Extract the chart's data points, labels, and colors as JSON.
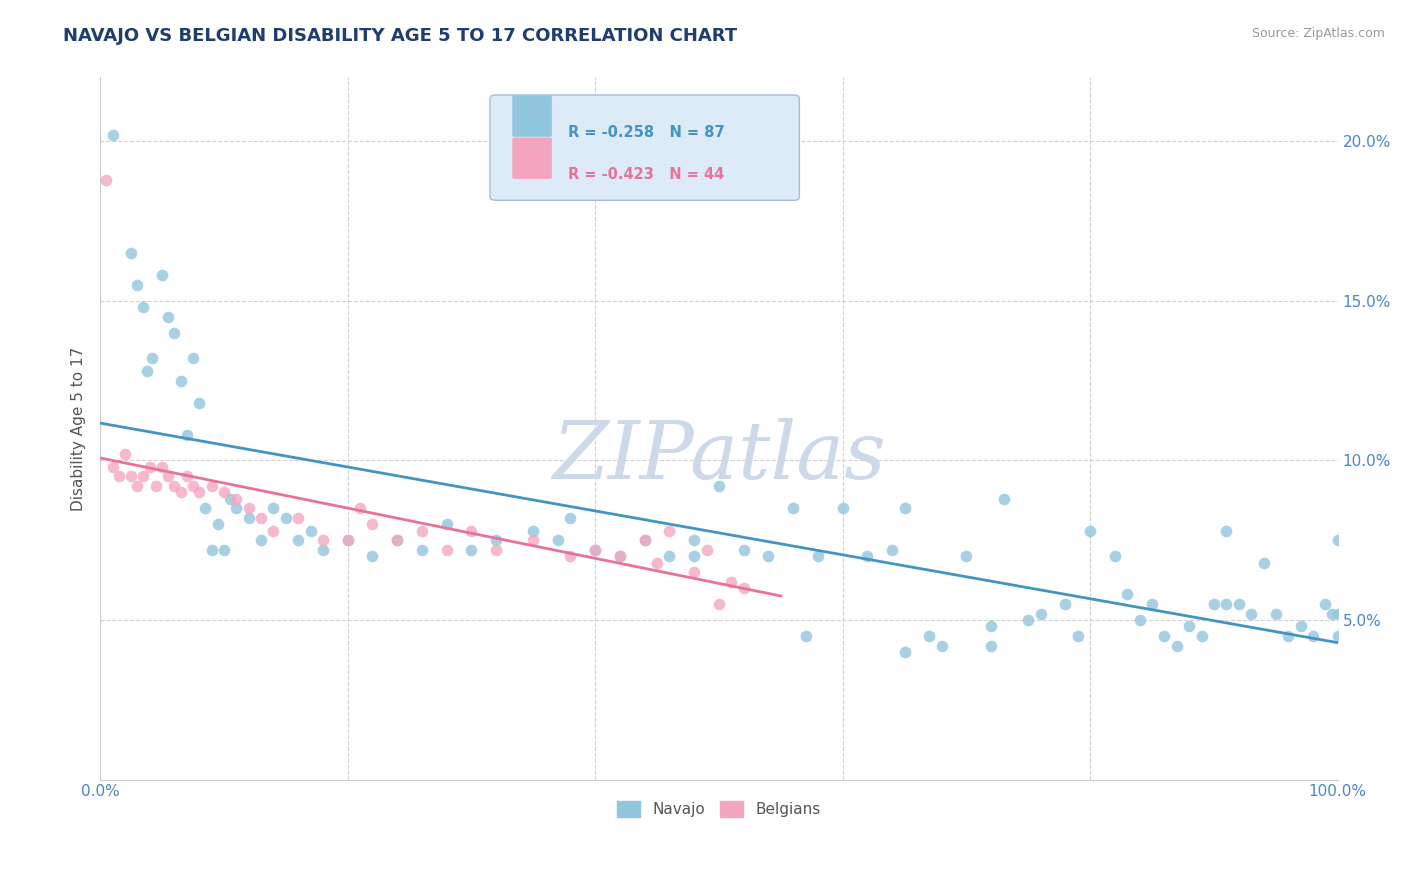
{
  "title": "NAVAJO VS BELGIAN DISABILITY AGE 5 TO 17 CORRELATION CHART",
  "source": "Source: ZipAtlas.com",
  "ylabel": "Disability Age 5 to 17",
  "watermark": "ZIPatlas",
  "navajo_R": -0.258,
  "navajo_N": 87,
  "belgian_R": -0.423,
  "belgian_N": 44,
  "navajo_color": "#92c5de",
  "belgian_color": "#f4a6c0",
  "navajo_line_color": "#4393c3",
  "belgian_line_color": "#e8729a",
  "background_color": "#ffffff",
  "navajo_x": [
    1.0,
    2.5,
    3.0,
    3.5,
    3.8,
    4.2,
    5.0,
    5.5,
    6.0,
    6.5,
    7.0,
    7.5,
    8.0,
    8.5,
    9.0,
    9.5,
    10.0,
    10.5,
    11.0,
    12.0,
    13.0,
    14.0,
    15.0,
    16.0,
    17.0,
    18.0,
    20.0,
    22.0,
    24.0,
    26.0,
    28.0,
    30.0,
    32.0,
    35.0,
    37.0,
    38.0,
    40.0,
    42.0,
    44.0,
    46.0,
    48.0,
    50.0,
    52.0,
    54.0,
    56.0,
    58.0,
    60.0,
    62.0,
    64.0,
    65.0,
    67.0,
    68.0,
    70.0,
    72.0,
    73.0,
    75.0,
    76.0,
    78.0,
    80.0,
    82.0,
    83.0,
    84.0,
    85.0,
    86.0,
    87.0,
    88.0,
    89.0,
    90.0,
    91.0,
    92.0,
    93.0,
    94.0,
    95.0,
    96.0,
    97.0,
    98.0,
    99.0,
    99.5,
    100.0,
    100.0,
    100.0,
    91.0,
    79.0,
    72.0,
    65.0,
    57.0,
    48.0
  ],
  "navajo_y": [
    20.2,
    16.5,
    15.5,
    14.8,
    12.8,
    13.2,
    15.8,
    14.5,
    14.0,
    12.5,
    10.8,
    13.2,
    11.8,
    8.5,
    7.2,
    8.0,
    7.2,
    8.8,
    8.5,
    8.2,
    7.5,
    8.5,
    8.2,
    7.5,
    7.8,
    7.2,
    7.5,
    7.0,
    7.5,
    7.2,
    8.0,
    7.2,
    7.5,
    7.8,
    7.5,
    8.2,
    7.2,
    7.0,
    7.5,
    7.0,
    7.5,
    9.2,
    7.2,
    7.0,
    8.5,
    7.0,
    8.5,
    7.0,
    7.2,
    8.5,
    4.5,
    4.2,
    7.0,
    4.8,
    8.8,
    5.0,
    5.2,
    5.5,
    7.8,
    7.0,
    5.8,
    5.0,
    5.5,
    4.5,
    4.2,
    4.8,
    4.5,
    5.5,
    7.8,
    5.5,
    5.2,
    6.8,
    5.2,
    4.5,
    4.8,
    4.5,
    5.5,
    5.2,
    7.5,
    5.2,
    4.5,
    5.5,
    4.5,
    4.2,
    4.0,
    4.5,
    7.0
  ],
  "belgian_x": [
    0.5,
    1.0,
    1.5,
    2.0,
    2.5,
    3.0,
    3.5,
    4.0,
    4.5,
    5.0,
    5.5,
    6.0,
    6.5,
    7.0,
    7.5,
    8.0,
    9.0,
    10.0,
    11.0,
    12.0,
    13.0,
    14.0,
    16.0,
    18.0,
    20.0,
    21.0,
    22.0,
    24.0,
    26.0,
    28.0,
    30.0,
    32.0,
    35.0,
    38.0,
    40.0,
    42.0,
    44.0,
    45.0,
    46.0,
    48.0,
    49.0,
    50.0,
    51.0,
    52.0
  ],
  "belgian_y": [
    18.8,
    9.8,
    9.5,
    10.2,
    9.5,
    9.2,
    9.5,
    9.8,
    9.2,
    9.8,
    9.5,
    9.2,
    9.0,
    9.5,
    9.2,
    9.0,
    9.2,
    9.0,
    8.8,
    8.5,
    8.2,
    7.8,
    8.2,
    7.5,
    7.5,
    8.5,
    8.0,
    7.5,
    7.8,
    7.2,
    7.8,
    7.2,
    7.5,
    7.0,
    7.2,
    7.0,
    7.5,
    6.8,
    7.8,
    6.5,
    7.2,
    5.5,
    6.2,
    6.0
  ],
  "xlim": [
    0,
    100
  ],
  "ylim": [
    0,
    22
  ],
  "yticks": [
    0,
    5,
    10,
    15,
    20
  ],
  "yticklabels": [
    "",
    "5.0%",
    "10.0%",
    "15.0%",
    "20.0%"
  ],
  "grid_color": "#cccccc",
  "title_color": "#1f3d6e",
  "axis_label_color": "#555555",
  "tick_label_color": "#4a86c8",
  "source_color": "#999999",
  "watermark_color": "#cdd9e8",
  "legend_box_color": "#ddeaf7",
  "legend_border_color": "#aabbd4"
}
